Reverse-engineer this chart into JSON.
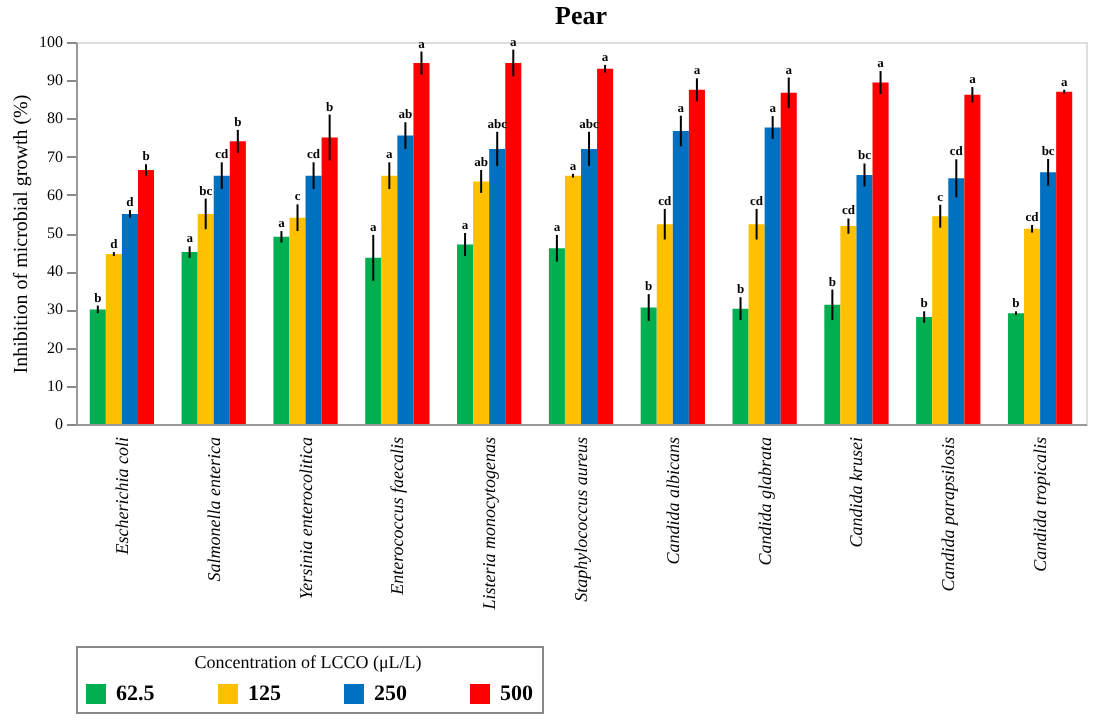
{
  "chart_data": {
    "type": "bar",
    "title": "Pear",
    "ylabel": "Inhibition of microbial growth (%)",
    "legend_title": "Concentration of LCCO (μL/L)",
    "categories": [
      "Escherichia coli",
      "Salmonella enterica",
      "Yersinia enterocolitica",
      "Enterococcus faecalis",
      "Listeria monocytogenas",
      "Staphylococcus aureus",
      "Candida albicans",
      "Candida glabrata",
      "Candida krusei",
      "Candida parapsilosis",
      "Candida tropicalis"
    ],
    "series": [
      {
        "name": "62.5",
        "color": "#00b050",
        "values": [
          30,
          45,
          49,
          43.5,
          47,
          46,
          30.5,
          30.2,
          31.2,
          28,
          29
        ],
        "errors": [
          1,
          1.5,
          1.5,
          6,
          3,
          3.5,
          3.5,
          3,
          4,
          1.5,
          0.5
        ],
        "value_labels": [
          "b",
          "a",
          "a",
          "a",
          "a",
          "a",
          "b",
          "b",
          "b",
          "b",
          "b"
        ]
      },
      {
        "name": "125",
        "color": "#ffc000",
        "values": [
          44.5,
          55,
          54,
          65,
          63.5,
          65,
          52.3,
          52.3,
          51.8,
          54.4,
          51.1
        ],
        "errors": [
          0.5,
          4,
          3.5,
          3.5,
          3,
          0.5,
          4,
          4,
          2,
          3,
          1
        ],
        "value_labels": [
          "d",
          "bc",
          "c",
          "a",
          "ab",
          "a",
          "cd",
          "cd",
          "cd",
          "c",
          "cd"
        ]
      },
      {
        "name": "250",
        "color": "#0070c0",
        "values": [
          55,
          65,
          65,
          75.5,
          72,
          72,
          76.7,
          77.6,
          65.2,
          64.3,
          65.9
        ],
        "errors": [
          1,
          3.5,
          3.5,
          3.5,
          4.5,
          4.5,
          4,
          3,
          3,
          5,
          3.5
        ],
        "value_labels": [
          "d",
          "cd",
          "cd",
          "ab",
          "abc",
          "abc",
          "a",
          "a",
          "bc",
          "cd",
          "bc"
        ]
      },
      {
        "name": "500",
        "color": "#ff0000",
        "values": [
          66.5,
          74,
          75,
          94.5,
          94.5,
          93,
          87.5,
          86.7,
          89.4,
          86.2,
          87
        ],
        "errors": [
          1.5,
          3,
          6,
          3,
          3.5,
          1,
          3,
          4,
          3,
          2,
          0.5
        ],
        "value_labels": [
          "b",
          "b",
          "b",
          "a",
          "a",
          "a",
          "a",
          "a",
          "a",
          "a",
          "a"
        ]
      }
    ],
    "ylim": [
      0,
      100
    ],
    "yticks": [
      0,
      10,
      20,
      30,
      40,
      50,
      60,
      70,
      80,
      90,
      100
    ],
    "grid": false,
    "legend": "bottom"
  }
}
